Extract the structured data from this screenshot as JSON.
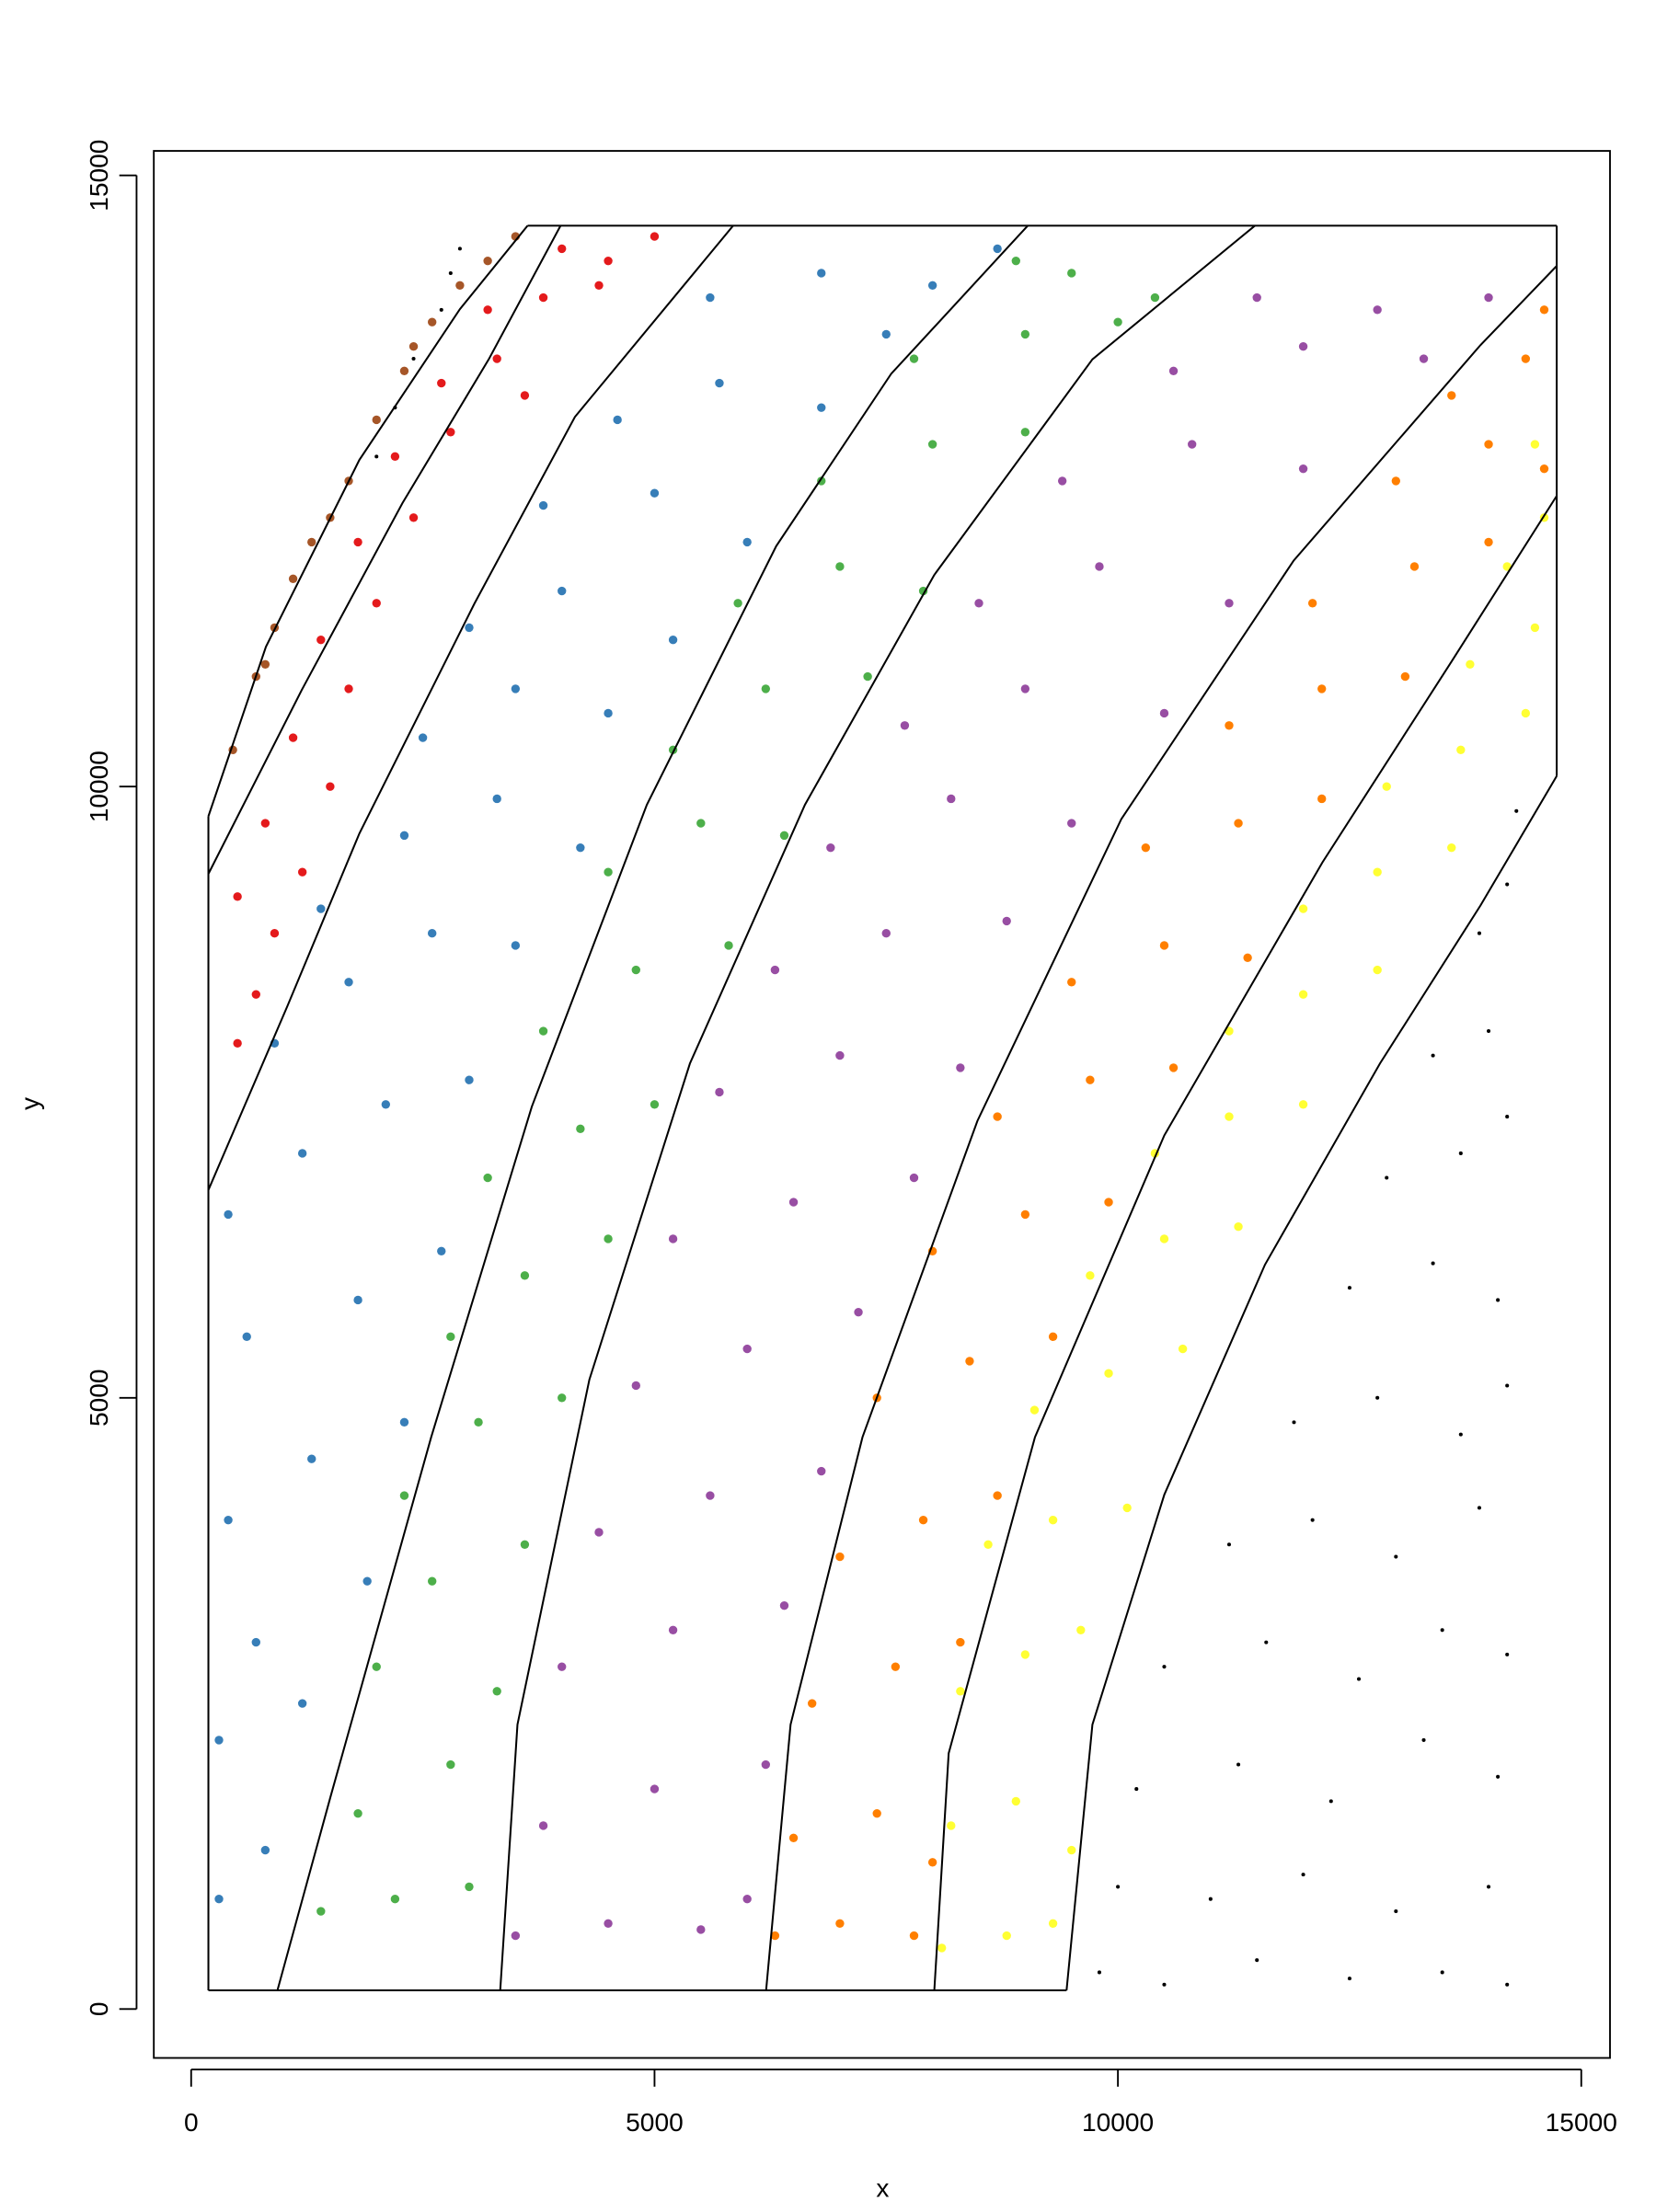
{
  "chart_data": {
    "type": "scatter",
    "x_label": "x",
    "y_label": "y",
    "xlim": [
      -403,
      15310
    ],
    "ylim": [
      -400,
      15200
    ],
    "xticks": [
      0,
      5000,
      10000,
      15000
    ],
    "yticks": [
      0,
      5000,
      10000,
      15000
    ],
    "grid": false,
    "series": [
      {
        "color": "#a65628",
        "point_size": 3,
        "x": [
          450,
          700,
          900,
          1100,
          1500,
          1700,
          2000,
          2300,
          2600,
          2900,
          3200,
          3500,
          1300,
          800,
          2400
        ],
        "y": [
          10300,
          10900,
          11300,
          11700,
          12200,
          12500,
          13000,
          13400,
          13800,
          14100,
          14300,
          14500,
          12000,
          11000,
          13600
        ]
      },
      {
        "color": "#e41a1c",
        "point_size": 3,
        "x": [
          500,
          700,
          900,
          500,
          1200,
          800,
          1500,
          1100,
          1700,
          1400,
          2000,
          1800,
          2400,
          2200,
          2800,
          2700,
          3300,
          3200,
          3800,
          4000,
          4500,
          5000,
          4400,
          3600
        ],
        "y": [
          7900,
          8300,
          8800,
          9100,
          9300,
          9700,
          10000,
          10400,
          10800,
          11200,
          11500,
          12000,
          12200,
          12700,
          12900,
          13300,
          13500,
          13900,
          14000,
          14400,
          14300,
          14500,
          14100,
          13200
        ]
      },
      {
        "color": "#377eb8",
        "point_size": 3,
        "x": [
          300,
          800,
          300,
          1200,
          700,
          1900,
          400,
          1300,
          2300,
          600,
          1800,
          2700,
          400,
          1200,
          2100,
          3000,
          900,
          1700,
          2600,
          3500,
          1400,
          2300,
          3300,
          4200,
          2500,
          3500,
          4500,
          3000,
          4000,
          5200,
          3800,
          5000,
          6000,
          4600,
          5700,
          6800,
          5600,
          6800,
          8000,
          8700,
          7500
        ],
        "y": [
          900,
          1300,
          2200,
          2500,
          3000,
          3500,
          4000,
          4500,
          4800,
          5500,
          5800,
          6200,
          6500,
          7000,
          7400,
          7600,
          7900,
          8400,
          8800,
          8700,
          9000,
          9600,
          9900,
          9500,
          10400,
          10800,
          10600,
          11300,
          11600,
          11200,
          12300,
          12400,
          12000,
          13000,
          13300,
          13100,
          14000,
          14200,
          14100,
          14400,
          13700
        ]
      },
      {
        "color": "#4daf4a",
        "point_size": 3,
        "x": [
          1400,
          2200,
          3000,
          1800,
          2800,
          3300,
          2000,
          2600,
          3600,
          2300,
          3100,
          4000,
          2800,
          3600,
          4500,
          3200,
          4200,
          5000,
          3800,
          4800,
          5800,
          4500,
          5500,
          6400,
          5200,
          6200,
          7300,
          5900,
          7000,
          7900,
          6800,
          8000,
          9000,
          7800,
          9000,
          10000,
          8900,
          10400,
          9500
        ],
        "y": [
          800,
          900,
          1000,
          1600,
          2000,
          2600,
          2800,
          3500,
          3800,
          4200,
          4800,
          5000,
          5500,
          6000,
          6300,
          6800,
          7200,
          7400,
          8000,
          8500,
          8700,
          9300,
          9700,
          9600,
          10300,
          10800,
          10900,
          11500,
          11800,
          11600,
          12500,
          12800,
          12900,
          13500,
          13700,
          13800,
          14300,
          14000,
          14200
        ]
      },
      {
        "color": "#984ea3",
        "point_size": 3,
        "x": [
          3500,
          4500,
          5500,
          6000,
          3800,
          5000,
          6200,
          4000,
          5200,
          6400,
          4400,
          5600,
          6800,
          4800,
          6000,
          7200,
          5200,
          6500,
          7800,
          5700,
          7000,
          8300,
          6300,
          7500,
          8800,
          6900,
          8200,
          9500,
          7700,
          9000,
          10500,
          8500,
          9800,
          11200,
          9400,
          10800,
          12000,
          10600,
          12000,
          13300,
          11500,
          12800,
          14000
        ],
        "y": [
          600,
          700,
          650,
          900,
          1500,
          1800,
          2000,
          2800,
          3100,
          3300,
          3900,
          4200,
          4400,
          5100,
          5400,
          5700,
          6300,
          6600,
          6800,
          7500,
          7800,
          7700,
          8500,
          8800,
          8900,
          9500,
          9900,
          9700,
          10500,
          10800,
          10600,
          11500,
          11800,
          11500,
          12500,
          12800,
          12600,
          13400,
          13600,
          13500,
          14000,
          13900,
          14000
        ]
      },
      {
        "color": "#ff7f00",
        "point_size": 3,
        "x": [
          6300,
          7000,
          7800,
          6500,
          7400,
          8000,
          6700,
          7600,
          8300,
          7000,
          7900,
          8700,
          7400,
          8400,
          9300,
          8000,
          9000,
          9900,
          8700,
          9700,
          10600,
          9500,
          10500,
          11400,
          10300,
          11300,
          12200,
          11200,
          12200,
          13100,
          12100,
          13200,
          14000,
          13000,
          14000,
          14600,
          13600,
          14400,
          14600
        ],
        "y": [
          600,
          700,
          600,
          1400,
          1600,
          1200,
          2500,
          2800,
          3000,
          3700,
          4000,
          4200,
          5000,
          5300,
          5500,
          6200,
          6500,
          6600,
          7300,
          7600,
          7700,
          8400,
          8700,
          8600,
          9500,
          9700,
          9900,
          10500,
          10800,
          10900,
          11500,
          11800,
          12000,
          12500,
          12800,
          12600,
          13200,
          13500,
          13900
        ]
      },
      {
        "color": "#ffff33",
        "point_size": 3,
        "x": [
          8100,
          8800,
          9300,
          8200,
          8900,
          9500,
          8300,
          9000,
          9600,
          8600,
          9300,
          10100,
          9100,
          9900,
          10700,
          9700,
          10500,
          11300,
          10400,
          11200,
          12000,
          11200,
          12000,
          12800,
          12000,
          12800,
          13600,
          12900,
          13700,
          14400,
          13800,
          14500,
          14200,
          14600,
          14500
        ],
        "y": [
          500,
          600,
          700,
          1500,
          1700,
          1300,
          2600,
          2900,
          3100,
          3800,
          4000,
          4100,
          4900,
          5200,
          5400,
          6000,
          6300,
          6400,
          7000,
          7300,
          7400,
          8000,
          8300,
          8500,
          9000,
          9300,
          9500,
          10000,
          10300,
          10600,
          11000,
          11300,
          11800,
          12200,
          12800
        ]
      },
      {
        "color": "#000000",
        "point_size": 1.3,
        "x": [
          9800,
          10500,
          11500,
          12500,
          13500,
          14200,
          10000,
          11000,
          12000,
          13000,
          14000,
          10200,
          11300,
          12300,
          13300,
          14100,
          10500,
          11600,
          12600,
          13500,
          14200,
          11200,
          12100,
          13000,
          13900,
          11900,
          12800,
          13700,
          14200,
          12500,
          13400,
          14100,
          12900,
          13700,
          14200,
          13400,
          14000,
          13900,
          14200,
          14300,
          2000,
          2200,
          2400,
          2700,
          2800,
          2900
        ],
        "y": [
          300,
          200,
          400,
          250,
          300,
          200,
          1000,
          900,
          1100,
          800,
          1000,
          1800,
          2000,
          1700,
          2200,
          1900,
          2800,
          3000,
          2700,
          3100,
          2900,
          3800,
          4000,
          3700,
          4100,
          4800,
          5000,
          4700,
          5100,
          5900,
          6100,
          5800,
          6800,
          7000,
          7300,
          7800,
          8000,
          8800,
          9200,
          9800,
          12700,
          13100,
          13500,
          13900,
          14200,
          14400
        ]
      }
    ],
    "lines": [
      {
        "color": "#000000",
        "x": [
          186,
          186
        ],
        "y": [
          153,
          9757
        ]
      },
      {
        "color": "#000000",
        "x": [
          186,
          9446
        ],
        "y": [
          153,
          153
        ]
      },
      {
        "color": "#000000",
        "x": [
          3630,
          14735
        ],
        "y": [
          14588,
          14588
        ]
      },
      {
        "color": "#000000",
        "x": [
          14735,
          14735
        ],
        "y": [
          14588,
          10086
        ]
      },
      {
        "color": "#000000",
        "x": [
          186,
          807,
          1815,
          2900,
          3630
        ],
        "y": [
          9757,
          11144,
          12672,
          13906,
          14588
        ]
      },
      {
        "color": "#000000",
        "x": [
          186,
          1194,
          2280,
          3211,
          3986
        ],
        "y": [
          9286,
          10791,
          12319,
          13495,
          14588
        ]
      },
      {
        "color": "#000000",
        "x": [
          186,
          1039,
          1815,
          3056,
          4141,
          5848
        ],
        "y": [
          6700,
          8205,
          9616,
          11496,
          13024,
          14588
        ]
      },
      {
        "color": "#000000",
        "x": [
          931,
          1505,
          2590,
          3676,
          4917,
          6313,
          7554,
          9027
        ],
        "y": [
          153,
          1740,
          4678,
          7382,
          9851,
          11967,
          13377,
          14588
        ]
      },
      {
        "color": "#000000",
        "x": [
          3335,
          3521,
          4297,
          5382,
          6623,
          8019,
          9725,
          11478
        ],
        "y": [
          153,
          2327,
          5149,
          7735,
          9851,
          11732,
          13495,
          14588
        ]
      },
      {
        "color": "#000000",
        "x": [
          6204,
          6468,
          7244,
          8484,
          10036,
          11897,
          13913,
          14735
        ],
        "y": [
          153,
          2327,
          4678,
          7265,
          9733,
          11849,
          13612,
          14259
        ]
      },
      {
        "color": "#000000",
        "x": [
          8019,
          8174,
          9105,
          10501,
          12207,
          13603,
          14735
        ],
        "y": [
          153,
          2092,
          4678,
          7147,
          9380,
          11026,
          12378
        ]
      },
      {
        "color": "#000000",
        "x": [
          9446,
          9725,
          10501,
          11587,
          12828,
          13913,
          14735
        ],
        "y": [
          153,
          2327,
          4208,
          6089,
          7735,
          9028,
          10086
        ]
      }
    ]
  }
}
